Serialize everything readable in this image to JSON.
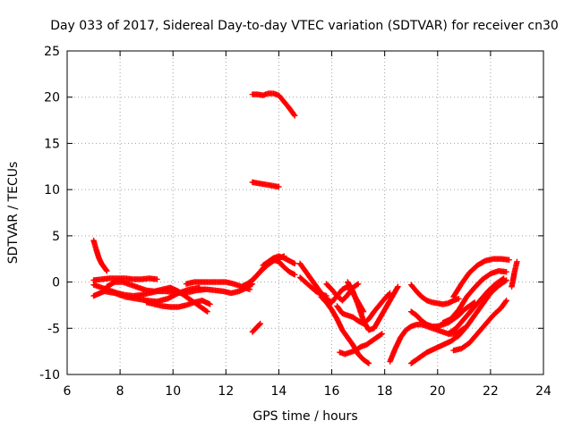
{
  "chart_data": {
    "type": "scatter",
    "title": "Day 033 of 2017, Sidereal Day-to-day VTEC variation (SDTVAR) for receiver cn30",
    "xlabel": "GPS time / hours",
    "ylabel": "SDTVAR / TECUs",
    "xlim": [
      6,
      24
    ],
    "ylim": [
      -10,
      25
    ],
    "xticks": [
      "6",
      "8",
      "10",
      "12",
      "14",
      "16",
      "18",
      "20",
      "22",
      "24"
    ],
    "yticks": [
      "25",
      "20",
      "15",
      "10",
      "5",
      "0",
      "-5",
      "-10"
    ],
    "grid": true,
    "marker": "plus",
    "color": "#ff0000",
    "series": [
      {
        "name": "s1",
        "x": [
          7.0,
          7.1,
          7.2,
          7.3,
          7.4,
          7.5
        ],
        "y": [
          4.5,
          3.5,
          2.6,
          2.0,
          1.6,
          1.2
        ]
      },
      {
        "name": "s2",
        "x": [
          7.0,
          7.3,
          7.6,
          7.9,
          8.2,
          8.5,
          8.8,
          9.1,
          9.4
        ],
        "y": [
          0.2,
          0.3,
          0.4,
          0.4,
          0.4,
          0.3,
          0.3,
          0.4,
          0.3
        ]
      },
      {
        "name": "s3",
        "x": [
          7.0,
          7.4,
          7.8,
          8.2,
          8.6,
          9.0,
          9.4,
          9.8,
          10.2,
          10.6,
          11.0
        ],
        "y": [
          -1.5,
          -1.0,
          -1.2,
          -1.6,
          -1.8,
          -2.0,
          -2.1,
          -1.8,
          -1.2,
          -0.8,
          -0.6
        ]
      },
      {
        "name": "s4",
        "x": [
          7.0,
          7.3,
          7.6,
          7.9,
          8.2,
          8.5,
          8.8,
          9.1,
          9.4,
          9.7,
          10.0,
          10.3,
          10.6,
          10.9,
          11.2
        ],
        "y": [
          -0.3,
          -0.6,
          -0.9,
          -1.2,
          -1.4,
          -1.5,
          -1.4,
          -1.2,
          -1.0,
          -1.0,
          -1.1,
          -1.2,
          -1.1,
          -0.9,
          -0.8
        ]
      },
      {
        "name": "s5",
        "x": [
          7.5,
          7.8,
          8.1,
          8.4,
          8.7,
          9.0,
          9.3,
          9.6,
          9.9,
          10.2,
          10.5,
          10.8,
          11.1,
          11.3
        ],
        "y": [
          -0.5,
          0.0,
          0.0,
          -0.3,
          -0.6,
          -0.9,
          -1.0,
          -0.8,
          -0.6,
          -1.0,
          -1.6,
          -2.2,
          -2.8,
          -3.2
        ]
      },
      {
        "name": "s6",
        "x": [
          9.0,
          9.3,
          9.6,
          9.9,
          10.2,
          10.5,
          10.8,
          11.1,
          11.4
        ],
        "y": [
          -2.2,
          -2.4,
          -2.6,
          -2.7,
          -2.7,
          -2.5,
          -2.2,
          -2.0,
          -2.4
        ]
      },
      {
        "name": "s7",
        "x": [
          10.5,
          10.8,
          11.1,
          11.4,
          11.7,
          12.0,
          12.3,
          12.6,
          12.9
        ],
        "y": [
          -0.2,
          0.0,
          0.0,
          0.0,
          0.0,
          0.0,
          -0.2,
          -0.5,
          -0.8
        ]
      },
      {
        "name": "s8",
        "x": [
          11.0,
          11.3,
          11.6,
          11.9,
          12.2,
          12.5,
          12.8,
          13.0
        ],
        "y": [
          -0.8,
          -0.8,
          -0.9,
          -1.0,
          -1.2,
          -1.0,
          -0.6,
          -0.2
        ]
      },
      {
        "name": "s9",
        "x": [
          12.6,
          12.8,
          13.0,
          13.2,
          13.4,
          13.6,
          13.8,
          14.0,
          14.2
        ],
        "y": [
          -0.5,
          -0.2,
          0.2,
          0.8,
          1.4,
          1.9,
          2.3,
          2.6,
          2.8
        ]
      },
      {
        "name": "s10",
        "x": [
          13.0,
          13.2,
          13.4,
          13.6,
          13.8,
          14.0,
          14.2,
          14.4,
          14.6
        ],
        "y": [
          0.2,
          0.8,
          1.5,
          2.0,
          2.4,
          2.2,
          1.6,
          1.1,
          0.8
        ]
      },
      {
        "name": "s11",
        "x": [
          13.4,
          13.6,
          13.8,
          14.0,
          14.2,
          14.4,
          14.6
        ],
        "y": [
          1.8,
          2.2,
          2.6,
          2.8,
          2.6,
          2.3,
          2.0
        ]
      },
      {
        "name": "s12",
        "x": [
          13.0,
          13.2,
          13.4,
          13.6,
          13.8,
          14.0,
          14.2,
          14.4,
          14.6
        ],
        "y": [
          20.3,
          20.3,
          20.2,
          20.4,
          20.4,
          20.2,
          19.5,
          18.8,
          18.0
        ]
      },
      {
        "name": "s13",
        "x": [
          13.0,
          13.2,
          13.4,
          13.6,
          13.8,
          14.0
        ],
        "y": [
          10.8,
          10.7,
          10.6,
          10.5,
          10.4,
          10.3
        ]
      },
      {
        "name": "s14",
        "x": [
          13.0,
          13.1,
          13.2,
          13.3
        ],
        "y": [
          -5.4,
          -5.1,
          -4.8,
          -4.5
        ]
      },
      {
        "name": "s15",
        "x": [
          14.8,
          15.0,
          15.2,
          15.4,
          15.6,
          15.8,
          16.0,
          16.2,
          16.4,
          16.6,
          16.8,
          17.0,
          17.2
        ],
        "y": [
          2.0,
          1.2,
          0.4,
          -0.4,
          -1.2,
          -1.8,
          -2.2,
          -1.5,
          -0.8,
          -0.5,
          -1.2,
          -2.2,
          -3.2
        ]
      },
      {
        "name": "s16",
        "x": [
          14.8,
          15.0,
          15.2,
          15.4,
          15.6,
          15.8
        ],
        "y": [
          0.5,
          0.0,
          -0.5,
          -1.0,
          -1.3,
          -1.5
        ]
      },
      {
        "name": "s17",
        "x": [
          15.8,
          16.0,
          16.2,
          16.4,
          16.6,
          16.8,
          17.0
        ],
        "y": [
          -0.2,
          -0.8,
          -1.5,
          -2.0,
          -1.4,
          -0.6,
          -0.2
        ]
      },
      {
        "name": "s18",
        "x": [
          16.2,
          16.4,
          16.6,
          16.8,
          17.0,
          17.2,
          17.4,
          17.6,
          17.8,
          18.0,
          18.2
        ],
        "y": [
          -2.6,
          -3.4,
          -3.6,
          -3.8,
          -4.2,
          -4.5,
          -4.0,
          -3.2,
          -2.5,
          -1.8,
          -1.2
        ]
      },
      {
        "name": "s19",
        "x": [
          16.6,
          16.8,
          17.0,
          17.2,
          17.4,
          17.6,
          17.8,
          18.0,
          18.2,
          18.4,
          18.5
        ],
        "y": [
          0.0,
          -1.0,
          -2.5,
          -4.2,
          -5.2,
          -5.0,
          -4.0,
          -3.0,
          -2.0,
          -1.0,
          -0.5
        ]
      },
      {
        "name": "s20",
        "x": [
          15.6,
          15.8,
          16.0,
          16.2,
          16.4,
          16.6,
          16.8,
          17.0,
          17.2,
          17.4
        ],
        "y": [
          -1.6,
          -2.2,
          -3.0,
          -4.0,
          -5.2,
          -6.0,
          -6.8,
          -7.8,
          -8.4,
          -8.8
        ]
      },
      {
        "name": "s21",
        "x": [
          16.3,
          16.5,
          16.7,
          16.9,
          17.1,
          17.3,
          17.5,
          17.7,
          17.9
        ],
        "y": [
          -7.6,
          -7.8,
          -7.6,
          -7.4,
          -7.0,
          -6.8,
          -6.4,
          -6.0,
          -5.6
        ]
      },
      {
        "name": "s22",
        "x": [
          18.2,
          18.4,
          18.6,
          18.8,
          19.0,
          19.2,
          19.4,
          19.6,
          19.8,
          20.0,
          20.2,
          20.4,
          20.6,
          20.8,
          21.0
        ],
        "y": [
          -8.6,
          -7.2,
          -6.0,
          -5.2,
          -4.8,
          -4.6,
          -4.6,
          -4.8,
          -5.0,
          -5.2,
          -5.4,
          -5.6,
          -5.6,
          -5.4,
          -5.0
        ]
      },
      {
        "name": "s23",
        "x": [
          19.0,
          19.2,
          19.4,
          19.6,
          19.8,
          20.0,
          20.2,
          20.4,
          20.6,
          20.8
        ],
        "y": [
          -0.3,
          -1.0,
          -1.6,
          -2.0,
          -2.2,
          -2.3,
          -2.4,
          -2.3,
          -2.0,
          -1.8
        ]
      },
      {
        "name": "s24",
        "x": [
          19.0,
          19.2,
          19.4,
          19.6,
          19.8,
          20.0,
          20.2,
          20.4,
          20.6,
          20.8,
          21.0,
          21.2,
          21.4
        ],
        "y": [
          -3.2,
          -3.6,
          -4.2,
          -4.6,
          -4.8,
          -4.8,
          -4.6,
          -4.4,
          -4.0,
          -3.6,
          -3.0,
          -2.6,
          -2.2
        ]
      },
      {
        "name": "s25",
        "x": [
          19.0,
          19.3,
          19.6,
          19.9,
          20.2,
          20.5,
          20.8,
          21.1,
          21.4,
          21.7,
          22.0,
          22.3,
          22.6
        ],
        "y": [
          -8.8,
          -8.2,
          -7.6,
          -7.2,
          -6.8,
          -6.4,
          -5.8,
          -4.8,
          -3.6,
          -2.4,
          -1.2,
          -0.4,
          0.2
        ]
      },
      {
        "name": "s26",
        "x": [
          20.6,
          20.9,
          21.2,
          21.5,
          21.8,
          22.1,
          22.4,
          22.6
        ],
        "y": [
          -7.4,
          -7.2,
          -6.6,
          -5.6,
          -4.6,
          -3.6,
          -2.8,
          -2.0
        ]
      },
      {
        "name": "s27",
        "x": [
          20.4,
          20.7,
          21.0,
          21.3,
          21.6,
          21.9,
          22.2,
          22.5
        ],
        "y": [
          -5.6,
          -5.0,
          -4.0,
          -3.0,
          -2.0,
          -1.0,
          -0.2,
          0.4
        ]
      },
      {
        "name": "s28",
        "x": [
          20.2,
          20.5,
          20.8,
          21.1,
          21.4,
          21.7,
          22.0,
          22.3,
          22.6
        ],
        "y": [
          -4.4,
          -4.0,
          -3.0,
          -1.6,
          -0.6,
          0.3,
          0.9,
          1.2,
          1.1
        ]
      },
      {
        "name": "s29",
        "x": [
          20.6,
          20.9,
          21.2,
          21.5,
          21.8,
          22.1,
          22.4,
          22.7
        ],
        "y": [
          -1.6,
          -0.2,
          1.0,
          1.8,
          2.3,
          2.5,
          2.5,
          2.4
        ]
      },
      {
        "name": "s30",
        "x": [
          22.8,
          22.85,
          22.9,
          22.95,
          23.0
        ],
        "y": [
          -0.5,
          0.2,
          1.0,
          1.6,
          2.2
        ]
      }
    ]
  }
}
